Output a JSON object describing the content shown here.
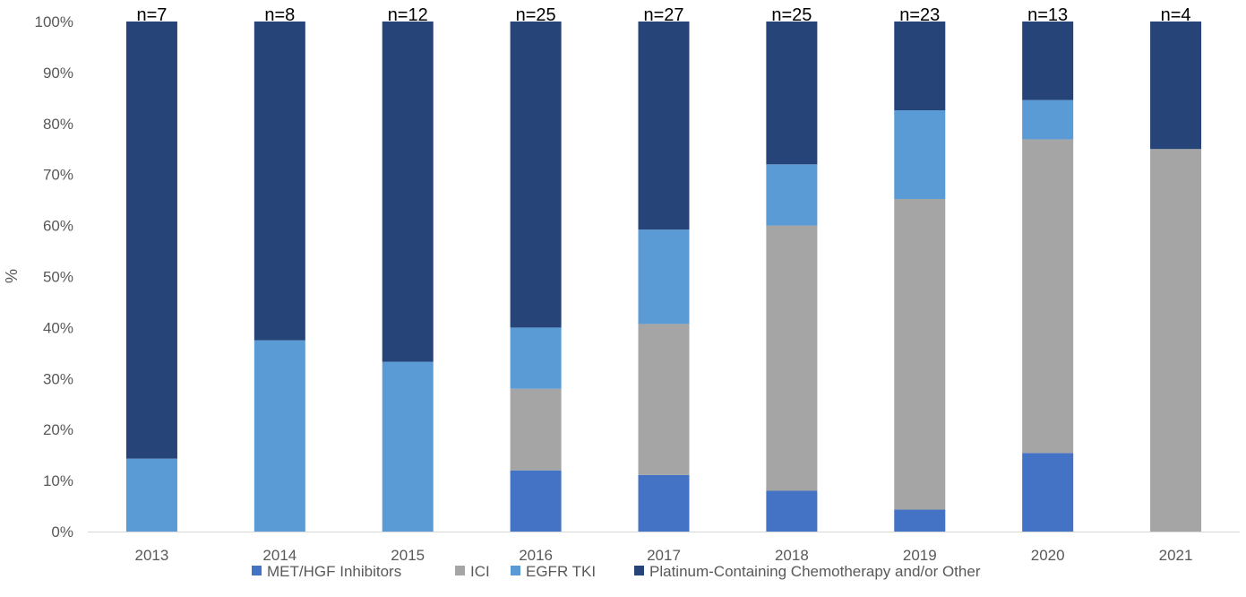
{
  "chart_data": {
    "type": "bar",
    "stacked": true,
    "categories": [
      "2013",
      "2014",
      "2015",
      "2016",
      "2017",
      "2018",
      "2019",
      "2020",
      "2021"
    ],
    "bar_labels": [
      "n=7",
      "n=8",
      "n=12",
      "n=25",
      "n=27",
      "n=25",
      "n=23",
      "n=13",
      "n=4"
    ],
    "series": [
      {
        "name": "MET/HGF Inhibitors",
        "color": "#4472C4",
        "values": [
          0,
          0,
          0,
          12,
          11.1,
          8,
          4.3,
          15.4,
          0
        ]
      },
      {
        "name": "ICI",
        "color": "#A5A5A5",
        "values": [
          0,
          0,
          0,
          16,
          29.6,
          52,
          60.9,
          61.5,
          75
        ]
      },
      {
        "name": "EGFR TKI",
        "color": "#5B9BD5",
        "values": [
          14.3,
          37.5,
          33.3,
          12,
          18.5,
          12,
          17.4,
          7.7,
          0
        ]
      },
      {
        "name": "Platinum-Containing Chemotherapy and/or Other",
        "color": "#264478",
        "values": [
          85.7,
          62.5,
          66.7,
          60,
          40.8,
          28,
          17.4,
          15.4,
          25
        ]
      }
    ],
    "ylabel": "%",
    "xlabel": "",
    "ylim": [
      0,
      100
    ],
    "yticks": [
      "0%",
      "10%",
      "20%",
      "30%",
      "40%",
      "50%",
      "60%",
      "70%",
      "80%",
      "90%",
      "100%"
    ],
    "grid": false,
    "legend": "bottom"
  }
}
